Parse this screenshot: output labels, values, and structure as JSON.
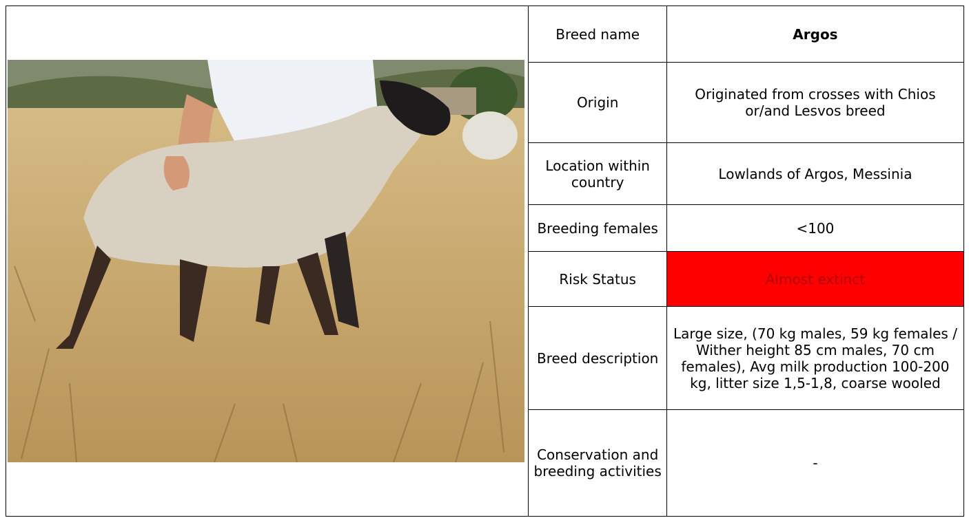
{
  "table": {
    "rows": [
      [
        "Breed name",
        "Argos"
      ],
      [
        "Origin",
        "Originated from crosses with Chios or/and Lesvos breed"
      ],
      [
        "Location within country",
        "Lowlands of Argos, Messinia"
      ],
      [
        "Breeding females",
        "<100"
      ],
      [
        "Risk Status",
        "Almost extinct"
      ],
      [
        "Breed description",
        "Large size, (70 kg males, 59 kg females / Wither height 85 cm males, 70 cm females), Avg milk production 100-200 kg, litter size 1,5-1,8, coarse wooled"
      ],
      [
        "Conservation and breeding activities",
        "-"
      ]
    ]
  }
}
